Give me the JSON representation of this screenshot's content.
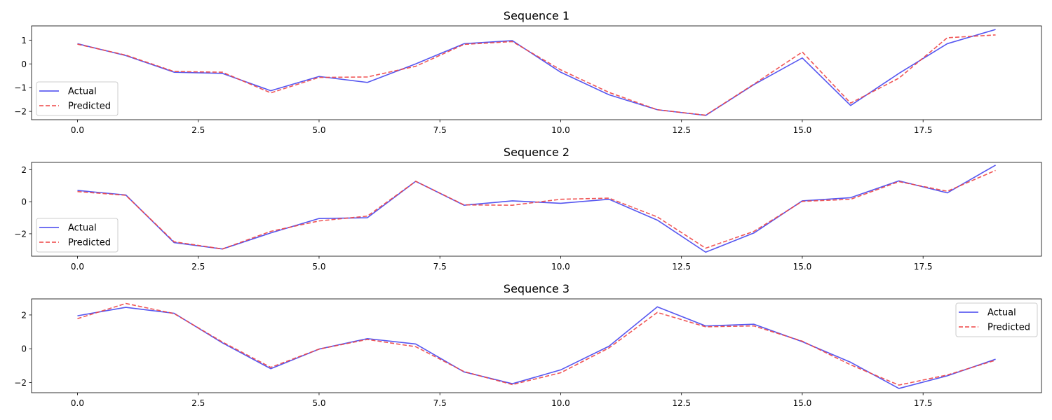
{
  "chart_data": [
    {
      "type": "line",
      "title": "Sequence 1",
      "xlabel": "",
      "ylabel": "",
      "xlim": [
        -0.95,
        19.95
      ],
      "ylim": [
        -2.35,
        1.6
      ],
      "xticks": [
        "0.0",
        "2.5",
        "5.0",
        "7.5",
        "10.0",
        "12.5",
        "15.0",
        "17.5"
      ],
      "yticks": [
        "1",
        "0",
        "−1",
        "−2"
      ],
      "legend": "bottom-left",
      "grid": false,
      "x": [
        0,
        1,
        2,
        3,
        4,
        5,
        6,
        7,
        8,
        9,
        10,
        11,
        12,
        13,
        14,
        15,
        16,
        17,
        18,
        19
      ],
      "series": [
        {
          "name": "Actual",
          "color": "#4444ee",
          "style": "solid",
          "values": [
            0.85,
            0.35,
            -0.35,
            -0.4,
            -1.13,
            -0.53,
            -0.78,
            0.0,
            0.85,
            0.98,
            -0.35,
            -1.3,
            -1.93,
            -2.17,
            -0.87,
            0.25,
            -1.75,
            -0.4,
            0.85,
            1.45
          ]
        },
        {
          "name": "Predicted",
          "color": "#ee4444",
          "style": "dashed",
          "values": [
            0.83,
            0.37,
            -0.32,
            -0.35,
            -1.22,
            -0.57,
            -0.55,
            -0.1,
            0.82,
            0.94,
            -0.25,
            -1.2,
            -1.93,
            -2.16,
            -0.85,
            0.5,
            -1.65,
            -0.6,
            1.1,
            1.22
          ]
        }
      ]
    },
    {
      "type": "line",
      "title": "Sequence 2",
      "xlabel": "",
      "ylabel": "",
      "xlim": [
        -0.95,
        19.95
      ],
      "ylim": [
        -3.4,
        2.45
      ],
      "xticks": [
        "0.0",
        "2.5",
        "5.0",
        "7.5",
        "10.0",
        "12.5",
        "15.0",
        "17.5"
      ],
      "yticks": [
        "2",
        "0",
        "−2"
      ],
      "legend": "bottom-left",
      "grid": false,
      "x": [
        0,
        1,
        2,
        3,
        4,
        5,
        6,
        7,
        8,
        9,
        10,
        11,
        12,
        13,
        14,
        15,
        16,
        17,
        18,
        19
      ],
      "series": [
        {
          "name": "Actual",
          "color": "#4444ee",
          "style": "solid",
          "values": [
            0.7,
            0.42,
            -2.55,
            -2.95,
            -1.95,
            -1.05,
            -1.0,
            1.27,
            -0.22,
            0.05,
            -0.1,
            0.15,
            -1.15,
            -3.15,
            -1.95,
            0.05,
            0.25,
            1.3,
            0.55,
            2.28
          ]
        },
        {
          "name": "Predicted",
          "color": "#ee4444",
          "style": "dashed",
          "values": [
            0.63,
            0.4,
            -2.5,
            -2.95,
            -1.85,
            -1.2,
            -0.9,
            1.27,
            -0.2,
            -0.22,
            0.15,
            0.22,
            -0.95,
            -2.9,
            -1.85,
            0.02,
            0.15,
            1.25,
            0.65,
            1.95
          ]
        }
      ]
    },
    {
      "type": "line",
      "title": "Sequence 3",
      "xlabel": "",
      "ylabel": "",
      "xlim": [
        -0.95,
        19.95
      ],
      "ylim": [
        -2.6,
        2.95
      ],
      "xticks": [
        "0.0",
        "2.5",
        "5.0",
        "7.5",
        "10.0",
        "12.5",
        "15.0",
        "17.5"
      ],
      "yticks": [
        "2",
        "0",
        "−2"
      ],
      "legend": "top-right",
      "grid": false,
      "x": [
        0,
        1,
        2,
        3,
        4,
        5,
        6,
        7,
        8,
        9,
        10,
        11,
        12,
        13,
        14,
        15,
        16,
        17,
        18,
        19
      ],
      "series": [
        {
          "name": "Actual",
          "color": "#4444ee",
          "style": "solid",
          "values": [
            1.95,
            2.45,
            2.1,
            0.35,
            -1.18,
            -0.02,
            0.6,
            0.28,
            -1.37,
            -2.07,
            -1.25,
            0.15,
            2.48,
            1.35,
            1.45,
            0.42,
            -0.8,
            -2.35,
            -1.6,
            -0.62
          ]
        },
        {
          "name": "Predicted",
          "color": "#ee4444",
          "style": "dashed",
          "values": [
            1.78,
            2.68,
            2.08,
            0.4,
            -1.1,
            -0.02,
            0.55,
            0.12,
            -1.35,
            -2.12,
            -1.42,
            0.05,
            2.15,
            1.3,
            1.35,
            0.45,
            -0.95,
            -2.15,
            -1.55,
            -0.68
          ]
        }
      ]
    }
  ]
}
